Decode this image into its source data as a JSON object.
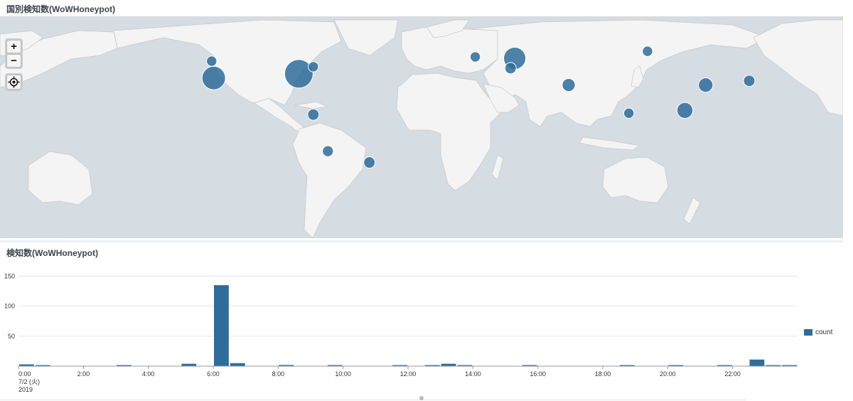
{
  "map_panel": {
    "title": "国別検知数(WoWHoneypot)",
    "controls": {
      "zoom_in": "+",
      "zoom_out": "−"
    },
    "colors": {
      "ocean": "#d5dce2",
      "land": "#f4f4f4",
      "border": "#c8c8c8",
      "marker": "#2e6c9a"
    }
  },
  "chart_panel": {
    "title": "検知数(WoWHoneypot)",
    "legend_label": "count",
    "date_label": "7/2 (火)",
    "year_label": "2019"
  },
  "map_markers": [
    {
      "region": "US West Coast",
      "lon": -121,
      "lat": 37,
      "magnitude": 0.78
    },
    {
      "region": "US East",
      "lon": -80,
      "lat": 40,
      "magnitude": 1.0
    },
    {
      "region": "Canada West",
      "lon": -122,
      "lat": 49,
      "magnitude": 0.2
    },
    {
      "region": "US North-East",
      "lon": -73,
      "lat": 45,
      "magnitude": 0.2
    },
    {
      "region": "Central America",
      "lon": -73,
      "lat": 11,
      "magnitude": 0.25
    },
    {
      "region": "Bolivia",
      "lon": -66,
      "lat": -15,
      "magnitude": 0.23
    },
    {
      "region": "Brazil",
      "lon": -46,
      "lat": -23,
      "magnitude": 0.25
    },
    {
      "region": "Netherlands",
      "lon": 5,
      "lat": 52,
      "magnitude": 0.2
    },
    {
      "region": "Eastern Europe",
      "lon": 24,
      "lat": 51,
      "magnitude": 0.72
    },
    {
      "region": "Balkans",
      "lon": 22,
      "lat": 44,
      "magnitude": 0.25
    },
    {
      "region": "Russia",
      "lon": 88,
      "lat": 56,
      "magnitude": 0.2
    },
    {
      "region": "Iran",
      "lon": 50,
      "lat": 32,
      "magnitude": 0.32
    },
    {
      "region": "India South",
      "lon": 79,
      "lat": 12,
      "magnitude": 0.2
    },
    {
      "region": "China East",
      "lon": 116,
      "lat": 32,
      "magnitude": 0.38
    },
    {
      "region": "Japan",
      "lon": 137,
      "lat": 35,
      "magnitude": 0.25
    },
    {
      "region": "Vietnam",
      "lon": 106,
      "lat": 14,
      "magnitude": 0.45
    }
  ],
  "chart_data": {
    "type": "bar",
    "title": "検知数(WoWHoneypot)",
    "xlabel": "",
    "ylabel": "",
    "ylim": [
      0,
      160
    ],
    "y_ticks": [
      50,
      100,
      150
    ],
    "x_ticks": [
      "0:00",
      "2:00",
      "4:00",
      "6:00",
      "8:00",
      "10:00",
      "12:00",
      "14:00",
      "16:00",
      "18:00",
      "20:00",
      "22:00"
    ],
    "grid": true,
    "legend_position": "right",
    "series": [
      {
        "name": "count",
        "color": "#2e6c9a",
        "bin_minutes": 30,
        "values": [
          3,
          1,
          0,
          0,
          0,
          0,
          1,
          0,
          0,
          0,
          4,
          0,
          135,
          5,
          0,
          0,
          2,
          0,
          0,
          1,
          0,
          0,
          0,
          1,
          0,
          1,
          4,
          1,
          0,
          0,
          0,
          1,
          0,
          0,
          0,
          0,
          0,
          1,
          0,
          0,
          1,
          0,
          0,
          1,
          0,
          11,
          1,
          1
        ]
      }
    ]
  }
}
